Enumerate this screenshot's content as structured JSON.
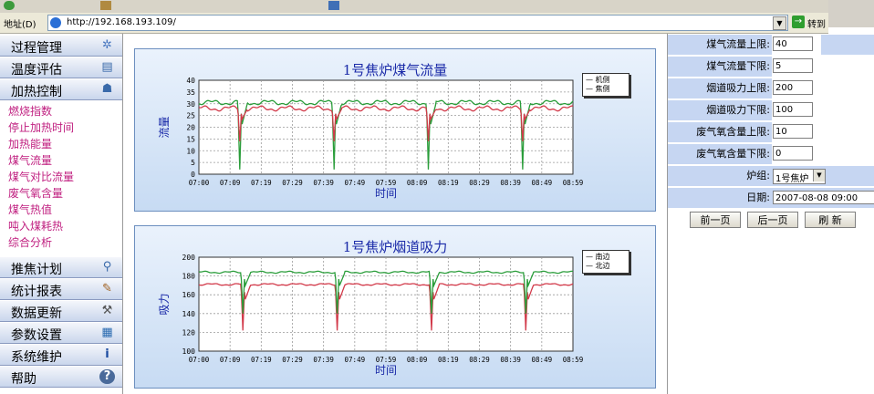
{
  "browser": {
    "address_label": "地址(D)",
    "url": "http://192.168.193.109/",
    "go_label": "转到"
  },
  "sidebar": {
    "menus": [
      {
        "label": "过程管理",
        "icon": "gear-icon"
      },
      {
        "label": "温度评估",
        "icon": "document-icon"
      },
      {
        "label": "加热控制",
        "icon": "person-icon"
      }
    ],
    "sub_items": [
      "燃烧指数",
      "停止加热时间",
      "加热能量",
      "煤气流量",
      "煤气对比流量",
      "废气氧含量",
      "煤气热值",
      "吨入煤耗热",
      "综合分析"
    ],
    "menus_bottom": [
      {
        "label": "推焦计划",
        "icon": "magnifier-icon"
      },
      {
        "label": "统计报表",
        "icon": "pen-icon"
      },
      {
        "label": "数据更新",
        "icon": "tools-icon"
      },
      {
        "label": "参数设置",
        "icon": "calendar-icon"
      },
      {
        "label": "系统维护",
        "icon": "info-icon"
      },
      {
        "label": "帮助",
        "icon": "help-icon"
      }
    ]
  },
  "charts": {
    "gas_flow": {
      "title": "1号焦炉煤气流量",
      "ylabel": "流量",
      "xlabel": "时间",
      "legend": [
        "机侧",
        "焦侧"
      ]
    },
    "suction": {
      "title": "1号焦炉烟道吸力",
      "ylabel": "吸力",
      "xlabel": "时间",
      "legend": [
        "南边",
        "北边"
      ]
    }
  },
  "chart_data": [
    {
      "type": "line",
      "title": "1号焦炉煤气流量",
      "xlabel": "时间",
      "ylabel": "流量",
      "x": [
        "07:00",
        "07:09",
        "07:19",
        "07:29",
        "07:39",
        "07:49",
        "07:59",
        "08:09",
        "08:19",
        "08:29",
        "08:39",
        "08:49",
        "08:59"
      ],
      "ylim": [
        0,
        40
      ],
      "yticks": [
        0,
        5,
        10,
        15,
        20,
        25,
        30,
        35,
        40
      ],
      "grid": true,
      "legend_position": "top-right",
      "series": [
        {
          "name": "机侧",
          "color": "#2a9d3a",
          "base": 30.5,
          "dip_min": 2
        },
        {
          "name": "焦侧",
          "color": "#d23a4a",
          "base": 28,
          "dip_min": 14
        }
      ],
      "dip_times": [
        "07:13",
        "07:43",
        "08:13",
        "08:43"
      ]
    },
    {
      "type": "line",
      "title": "1号焦炉烟道吸力",
      "xlabel": "时间",
      "ylabel": "吸力",
      "x": [
        "07:00",
        "07:09",
        "07:19",
        "07:29",
        "07:39",
        "07:49",
        "07:59",
        "08:09",
        "08:19",
        "08:29",
        "08:39",
        "08:49",
        "08:59"
      ],
      "ylim": [
        100,
        200
      ],
      "yticks": [
        100,
        120,
        140,
        160,
        180,
        200
      ],
      "grid": true,
      "legend_position": "top-right",
      "series": [
        {
          "name": "南边",
          "color": "#d23a4a",
          "base": 171,
          "dip_min": 122
        },
        {
          "name": "北边",
          "color": "#2a9d3a",
          "base": 184,
          "dip_min": 140
        }
      ],
      "dip_times": [
        "07:14",
        "07:44",
        "08:14",
        "08:44"
      ]
    }
  ],
  "params": [
    {
      "label": "煤气流量上限:",
      "value": "40"
    },
    {
      "label": "煤气流量下限:",
      "value": "5"
    },
    {
      "label": "烟道吸力上限:",
      "value": "200"
    },
    {
      "label": "烟道吸力下限:",
      "value": "100"
    },
    {
      "label": "废气氧含量上限:",
      "value": "10"
    },
    {
      "label": "废气氧含量下限:",
      "value": "0"
    }
  ],
  "furnace": {
    "label": "炉组:",
    "value": "1号焦炉"
  },
  "date": {
    "label": "日期:",
    "value": "2007-08-08 09:00"
  },
  "buttons": {
    "prev": "前一页",
    "next": "后一页",
    "refresh": "刷 新"
  }
}
